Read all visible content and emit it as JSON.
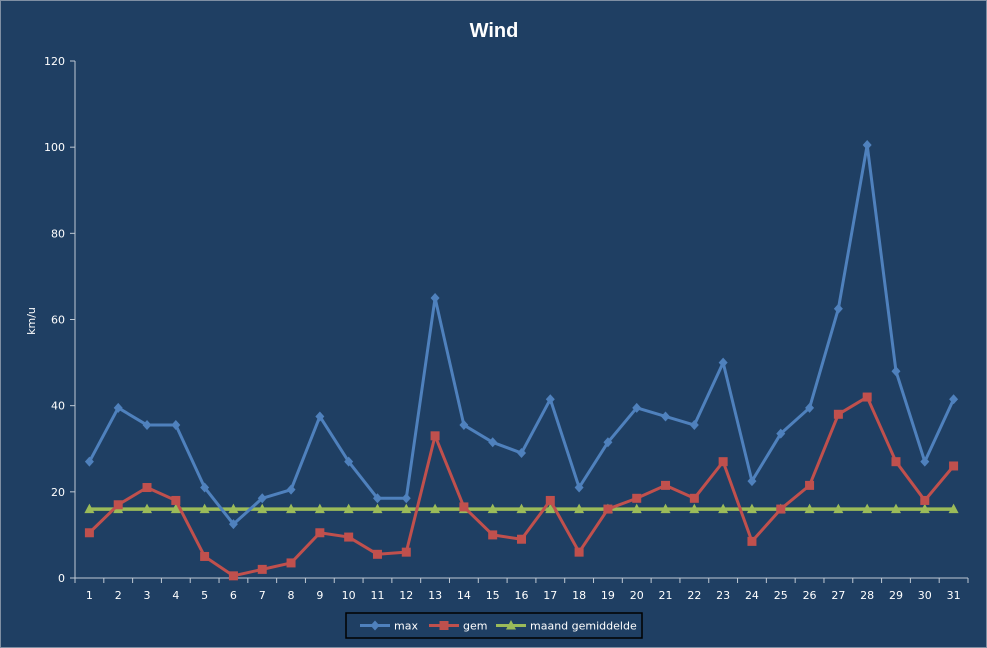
{
  "chart_data": {
    "type": "line",
    "title": "Wind",
    "xlabel": "",
    "ylabel": "km/u",
    "ylim": [
      0,
      120
    ],
    "yticks": [
      0,
      20,
      40,
      60,
      80,
      100,
      120
    ],
    "categories": [
      "1",
      "2",
      "3",
      "4",
      "5",
      "6",
      "7",
      "8",
      "9",
      "10",
      "11",
      "12",
      "13",
      "14",
      "15",
      "16",
      "17",
      "18",
      "19",
      "20",
      "21",
      "22",
      "23",
      "24",
      "25",
      "26",
      "27",
      "28",
      "29",
      "30",
      "31"
    ],
    "grid": false,
    "legend_position": "bottom",
    "series": [
      {
        "name": "max",
        "color": "#4f81bd",
        "marker": "diamond",
        "values": [
          27,
          39.5,
          35.5,
          35.5,
          21,
          12.5,
          18.5,
          20.5,
          37.5,
          27,
          18.5,
          18.5,
          65,
          35.5,
          31.5,
          29,
          41.5,
          21,
          31.5,
          39.5,
          37.5,
          35.5,
          50,
          22.5,
          33.5,
          39.5,
          62.5,
          100.5,
          48,
          27,
          41.5
        ]
      },
      {
        "name": "gem",
        "color": "#c0504d",
        "marker": "square",
        "values": [
          10.5,
          17,
          21,
          18,
          5,
          0.5,
          2,
          3.5,
          10.5,
          9.5,
          5.5,
          6,
          33,
          16.5,
          10,
          9,
          18,
          6,
          16,
          18.5,
          21.5,
          18.5,
          27,
          8.5,
          16,
          21.5,
          38,
          42,
          27,
          18,
          26
        ]
      },
      {
        "name": "maand gemiddelde",
        "color": "#9bbb59",
        "marker": "triangle",
        "values": [
          16,
          16,
          16,
          16,
          16,
          16,
          16,
          16,
          16,
          16,
          16,
          16,
          16,
          16,
          16,
          16,
          16,
          16,
          16,
          16,
          16,
          16,
          16,
          16,
          16,
          16,
          16,
          16,
          16,
          16,
          16
        ]
      }
    ]
  }
}
